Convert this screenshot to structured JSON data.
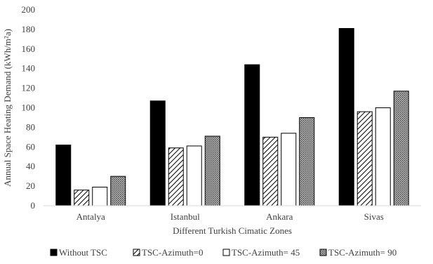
{
  "chart_data": {
    "type": "bar",
    "title": "",
    "xlabel": "Different Turkish Cimatic Zones",
    "ylabel": "Annual Space Heating Demand (kWh/m²a)",
    "ylim": [
      0,
      200
    ],
    "ytick_step": 20,
    "yticks": [
      "0",
      "20",
      "40",
      "60",
      "80",
      "100",
      "120",
      "140",
      "160",
      "180",
      "200"
    ],
    "grid": false,
    "legend_position": "bottom",
    "categories": [
      "Antalya",
      "Istanbul",
      "Ankara",
      "Sivas"
    ],
    "series": [
      {
        "name": "Without TSC",
        "values": [
          62,
          107,
          144,
          181
        ],
        "fill": "#000000",
        "pattern": "solid"
      },
      {
        "name": "TSC-Azimuth=0",
        "values": [
          16,
          59,
          70,
          96
        ],
        "fill": "#ffffff",
        "pattern": "diagonal-hatch"
      },
      {
        "name": "TSC-Azimuth= 45",
        "values": [
          19,
          61,
          74,
          100
        ],
        "fill": "#ffffff",
        "pattern": "none"
      },
      {
        "name": "TSC-Azimuth= 90",
        "values": [
          30,
          71,
          90,
          117
        ],
        "fill": "#b3b3b3",
        "pattern": "crosshatch"
      }
    ],
    "colors": {
      "axis": "#d9d9d9",
      "text": "#404040",
      "bar_stroke": "#000000"
    }
  }
}
